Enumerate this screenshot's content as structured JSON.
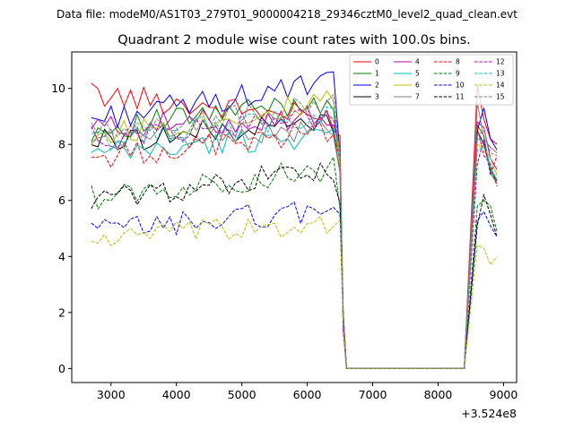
{
  "figure": {
    "suptitle": "Data file: modeM0/AS1T03_279T01_9000004218_29346cztM0_level2_quad_clean.evt"
  },
  "chart_data": {
    "type": "line",
    "title": "Quadrant 2 module wise count rates with 100.0s bins.",
    "xlabel": "",
    "ylabel": "",
    "x_offset_label": "+3.524e8",
    "xlim": [
      2400,
      9200
    ],
    "ylim": [
      -0.5,
      11.3
    ],
    "x_ticks": [
      3000,
      4000,
      5000,
      6000,
      7000,
      8000,
      9000
    ],
    "x_tick_labels": [
      "3000",
      "4000",
      "5000",
      "6000",
      "7000",
      "8000",
      "9000"
    ],
    "y_ticks": [
      0,
      2,
      4,
      6,
      8,
      10
    ],
    "y_tick_labels": [
      "0",
      "2",
      "4",
      "6",
      "8",
      "10"
    ],
    "grid": false,
    "legend_placement": "top-right",
    "legend_columns": 4,
    "x_start": 2700,
    "x_step": 100,
    "gap_start": 6600,
    "gap_end": 8400,
    "series": [
      {
        "name": "0",
        "color": "#ff0000",
        "dash": "solid",
        "base": 9.8,
        "end": 8.9,
        "pre": 8.3
      },
      {
        "name": "1",
        "color": "#008000",
        "dash": "solid",
        "base": 8.5,
        "end": 9.6,
        "pre": 7.2
      },
      {
        "name": "2",
        "color": "#0000ff",
        "dash": "solid",
        "base": 8.9,
        "end": 10.2,
        "pre": 7.6
      },
      {
        "name": "3",
        "color": "#000000",
        "dash": "solid",
        "base": 8.1,
        "end": 8.8,
        "pre": 7.0
      },
      {
        "name": "4",
        "color": "#bf00bf",
        "dash": "solid",
        "base": 8.6,
        "end": 9.0,
        "pre": 7.9
      },
      {
        "name": "5",
        "color": "#00bfbf",
        "dash": "solid",
        "base": 7.6,
        "end": 8.4,
        "pre": 7.4
      },
      {
        "name": "6",
        "color": "#bfbf00",
        "dash": "solid",
        "base": 8.3,
        "end": 9.5,
        "pre": 7.2
      },
      {
        "name": "7",
        "color": "#808080",
        "dash": "solid",
        "base": 8.2,
        "end": 8.5,
        "pre": 7.0
      },
      {
        "name": "8",
        "color": "#ff0000",
        "dash": "dashed",
        "base": 7.5,
        "end": 8.5,
        "pre": 7.5
      },
      {
        "name": "9",
        "color": "#008000",
        "dash": "dashed",
        "base": 6.1,
        "end": 7.1,
        "pre": 5.7
      },
      {
        "name": "10",
        "color": "#0000ff",
        "dash": "dashed",
        "base": 4.9,
        "end": 5.7,
        "pre": 5.5
      },
      {
        "name": "11",
        "color": "#000000",
        "dash": "dashed",
        "base": 6.0,
        "end": 7.1,
        "pre": 5.9
      },
      {
        "name": "12",
        "color": "#bf00bf",
        "dash": "dashed",
        "base": 8.2,
        "end": 9.0,
        "pre": 7.8
      },
      {
        "name": "13",
        "color": "#00bfbf",
        "dash": "dashed",
        "base": 8.1,
        "end": 9.1,
        "pre": 7.7
      },
      {
        "name": "14",
        "color": "#bfbf00",
        "dash": "dashed",
        "base": 4.6,
        "end": 5.2,
        "pre": 5.3
      },
      {
        "name": "15",
        "color": "#808080",
        "dash": "dashed",
        "base": 8.4,
        "end": 9.4,
        "pre": 7.5
      }
    ],
    "tail_x": [
      8500,
      8600,
      8700,
      8800,
      8900
    ],
    "tail_values": {
      "0": [
        0,
        10.1,
        8.9,
        8.2,
        8.0
      ],
      "1": [
        0,
        8.7,
        8.3,
        7.0,
        6.6
      ],
      "2": [
        0,
        8.5,
        9.3,
        8.2,
        7.8
      ],
      "3": [
        0,
        8.5,
        8.0,
        7.1,
        6.7
      ],
      "4": [
        0,
        8.8,
        8.6,
        7.5,
        7.1
      ],
      "5": [
        0,
        8.2,
        8.1,
        7.2,
        6.6
      ],
      "6": [
        0,
        8.0,
        7.9,
        7.5,
        6.9
      ],
      "7": [
        0,
        9.5,
        8.2,
        7.9,
        7.7
      ],
      "8": [
        0,
        8.6,
        7.6,
        7.3,
        6.5
      ],
      "9": [
        0,
        5.8,
        6.0,
        5.8,
        4.9
      ],
      "10": [
        0,
        5.3,
        5.6,
        5.1,
        4.7
      ],
      "11": [
        0,
        5.1,
        6.2,
        5.5,
        4.7
      ],
      "12": [
        0,
        7.3,
        8.2,
        6.9,
        7.6
      ],
      "13": [
        0,
        7.8,
        7.9,
        7.1,
        6.8
      ],
      "14": [
        0,
        4.4,
        4.3,
        3.7,
        4.0
      ],
      "15": [
        0,
        8.3,
        8.5,
        7.7,
        7.6
      ]
    }
  }
}
